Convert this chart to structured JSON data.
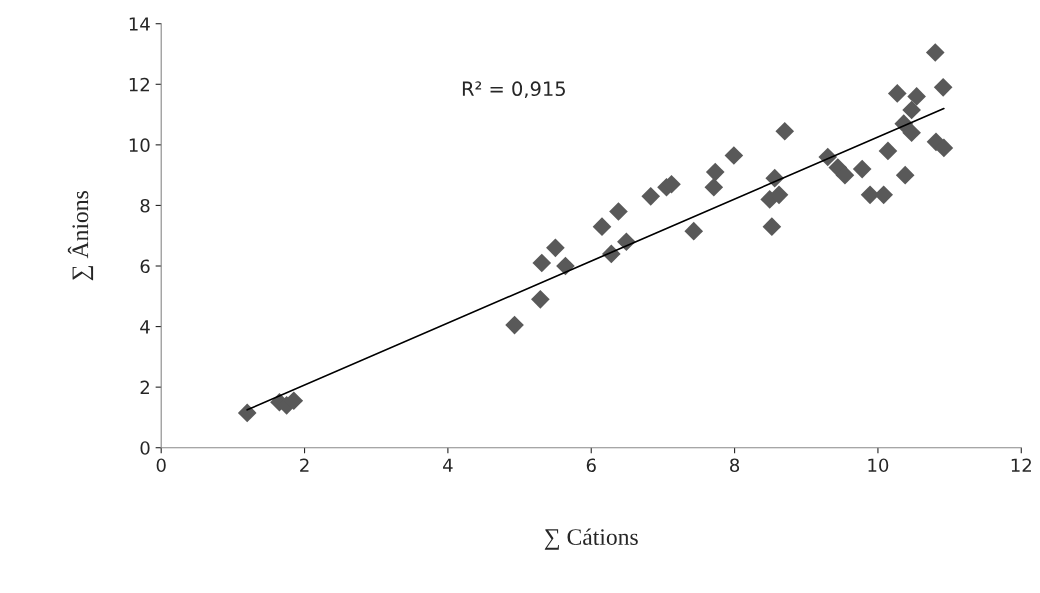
{
  "chart_data": {
    "type": "scatter",
    "xlabel": "∑ Cátions",
    "ylabel": "∑ Ânions",
    "annotations": [
      "R² = 0,915"
    ],
    "xlim": [
      0,
      12
    ],
    "xticks": [
      0,
      2,
      4,
      6,
      8,
      10,
      12
    ],
    "ylim": [
      0,
      14
    ],
    "yticks": [
      0,
      2,
      4,
      6,
      8,
      10,
      12,
      14
    ],
    "grid": false,
    "legend": false,
    "series": [
      {
        "color": "#595959",
        "marker": "diamond",
        "x": [
          1.2,
          1.65,
          1.75,
          1.85,
          4.93,
          5.29,
          5.31,
          5.5,
          5.64,
          6.15,
          6.28,
          6.38,
          6.49,
          6.83,
          7.05,
          7.12,
          7.43,
          7.71,
          7.73,
          7.99,
          8.52,
          8.49,
          8.56,
          8.62,
          8.7,
          9.3,
          9.44,
          9.54,
          9.78,
          9.89,
          10.08,
          10.14,
          10.27,
          10.38,
          10.36,
          10.47,
          10.54,
          10.47,
          10.8,
          10.81,
          10.92,
          10.91
        ],
        "values": [
          1.15,
          1.5,
          1.4,
          1.55,
          4.05,
          4.9,
          6.1,
          6.6,
          6.0,
          7.3,
          6.4,
          7.8,
          6.8,
          8.3,
          8.6,
          8.7,
          7.15,
          8.6,
          9.1,
          9.65,
          7.3,
          8.2,
          8.9,
          8.35,
          10.45,
          9.6,
          9.25,
          9.0,
          9.2,
          8.35,
          8.35,
          9.8,
          11.7,
          9.0,
          10.7,
          11.15,
          11.6,
          10.4,
          13.05,
          10.1,
          9.9,
          11.9
        ]
      },
      {
        "type": "line",
        "color": "#000000",
        "marker": "none",
        "line_style": "solid",
        "x": [
          1.2,
          10.92
        ],
        "values": [
          1.25,
          11.2
        ]
      }
    ]
  }
}
